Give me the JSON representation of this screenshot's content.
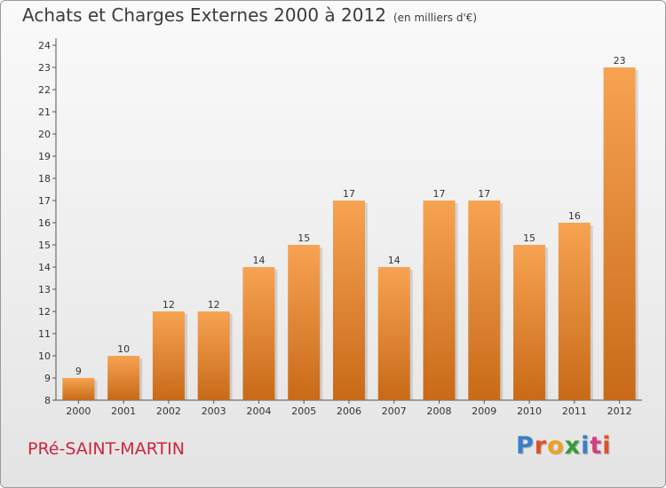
{
  "chart_data": {
    "type": "bar",
    "title": "Achats et Charges Externes 2000 à 2012",
    "subtitle": "(en milliers d'€)",
    "categories": [
      "2000",
      "2001",
      "2002",
      "2003",
      "2004",
      "2005",
      "2006",
      "2007",
      "2008",
      "2009",
      "2010",
      "2011",
      "2012"
    ],
    "values": [
      9,
      10,
      12,
      12,
      14,
      15,
      17,
      14,
      17,
      17,
      15,
      16,
      23
    ],
    "ylim": [
      8,
      24
    ],
    "yticks": [
      8,
      9,
      10,
      11,
      12,
      13,
      14,
      15,
      16,
      17,
      18,
      19,
      20,
      21,
      22,
      23,
      24
    ],
    "grid": false,
    "data_labels": true,
    "bar_color_top": "#f7a352",
    "bar_color_bottom": "#c86a18"
  },
  "footer": {
    "commune": "PRé-SAINT-MARTIN",
    "commune_color": "#d0243d",
    "logo_text": "Proxiti",
    "logo_colors": [
      "#3a7fc8",
      "#e0502a",
      "#f0a020",
      "#3a9a3a",
      "#3a7fc8",
      "#d04080",
      "#e0502a"
    ]
  }
}
